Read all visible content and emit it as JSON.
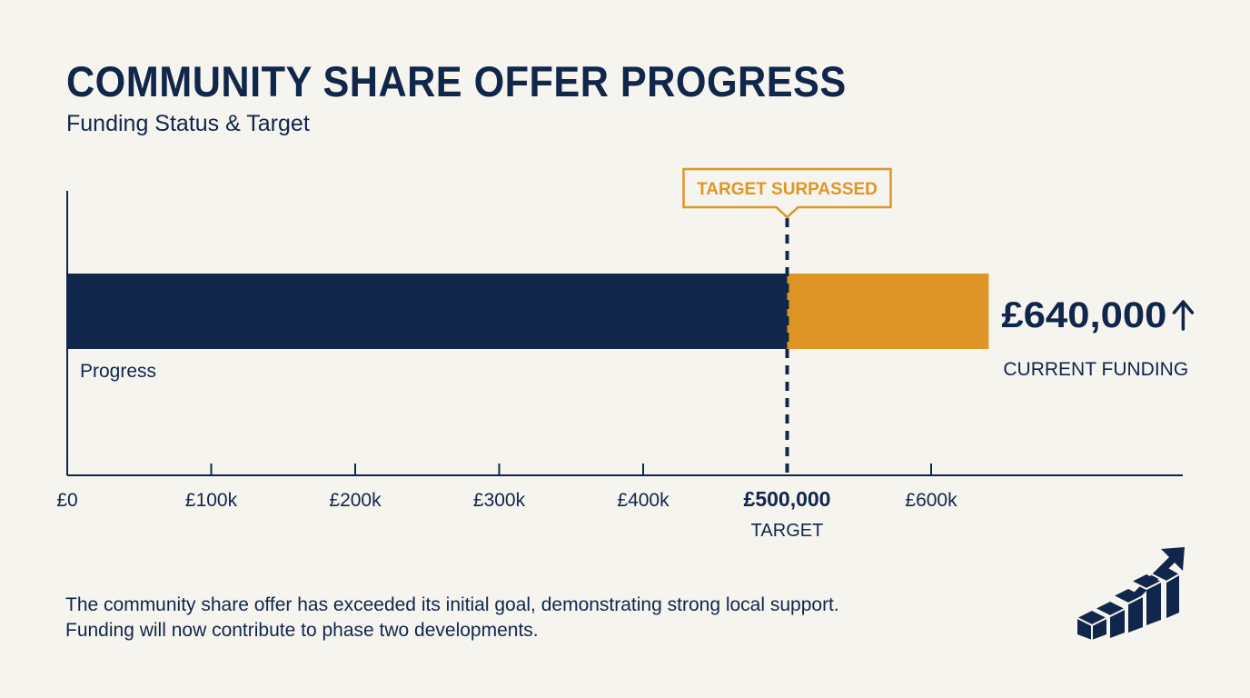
{
  "header": {
    "title": "COMMUNITY SHARE OFFER PROGRESS",
    "subtitle": "Funding Status & Target"
  },
  "chart_data": {
    "type": "bar",
    "orientation": "horizontal",
    "stacked": true,
    "title": "COMMUNITY SHARE OFFER PROGRESS",
    "subtitle": "Funding Status & Target",
    "categories": [
      "Progress"
    ],
    "series": [
      {
        "values": [
          500000
        ],
        "color": "#10264a"
      },
      {
        "values": [
          140000
        ],
        "color": "#df9526"
      }
    ],
    "xlim": [
      0,
      700000
    ],
    "x_ticks": [
      {
        "value": 0,
        "label": "£0"
      },
      {
        "value": 100000,
        "label": "£100k"
      },
      {
        "value": 200000,
        "label": "£200k"
      },
      {
        "value": 300000,
        "label": "£300k"
      },
      {
        "value": 400000,
        "label": "£400k"
      },
      {
        "value": 500000,
        "label": "£500,000",
        "sublabel": "TARGET",
        "emphasis": true
      },
      {
        "value": 600000,
        "label": "£600k"
      }
    ],
    "target": {
      "value": 500000,
      "callout": "TARGET SURPASSED"
    },
    "total": {
      "value": 640000,
      "label": "£640,000",
      "caption": "CURRENT FUNDING",
      "arrow": "up-arrow-icon"
    },
    "grid": false,
    "legend": "none"
  },
  "footer": {
    "note": "The community share offer has exceeded its initial goal, demonstrating strong local support. Funding will now contribute to phase two developments."
  },
  "icons": {
    "growth": "growth-stairs-arrow-icon"
  },
  "colors": {
    "navy": "#10264a",
    "gold": "#df9526",
    "background": "#f6f4ef"
  }
}
